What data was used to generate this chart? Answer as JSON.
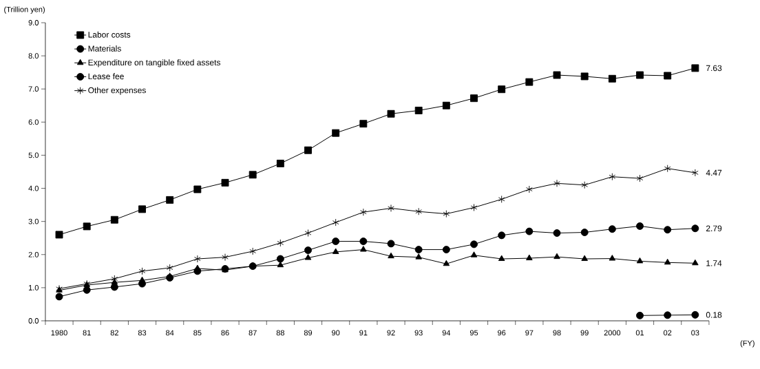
{
  "chart_data": {
    "type": "line",
    "ylabel": "(Trillion yen)",
    "xlabel": "(FY)",
    "categories": [
      "1980",
      "81",
      "82",
      "83",
      "84",
      "85",
      "86",
      "87",
      "88",
      "89",
      "90",
      "91",
      "92",
      "93",
      "94",
      "95",
      "96",
      "97",
      "98",
      "99",
      "2000",
      "01",
      "02",
      "03"
    ],
    "ylim": [
      0,
      9
    ],
    "yticks": [
      {
        "value": 0,
        "label": "0.0"
      },
      {
        "value": 1,
        "label": "1.0"
      },
      {
        "value": 2,
        "label": "2.0"
      },
      {
        "value": 3,
        "label": "3.0"
      },
      {
        "value": 4,
        "label": "4.0"
      },
      {
        "value": 5,
        "label": "5.0"
      },
      {
        "value": 6,
        "label": "6.0"
      },
      {
        "value": 7,
        "label": "7.0"
      },
      {
        "value": 8,
        "label": "8.0"
      },
      {
        "value": 9,
        "label": "9.0"
      }
    ],
    "legend": "top left",
    "grid": false,
    "line_style": "solid",
    "series": [
      {
        "name": "Labor costs",
        "color": "#000000",
        "marker": "square",
        "values": [
          2.6,
          2.85,
          3.05,
          3.37,
          3.65,
          3.97,
          4.17,
          4.41,
          4.75,
          5.15,
          5.67,
          5.95,
          6.25,
          6.35,
          6.5,
          6.72,
          6.99,
          7.21,
          7.42,
          7.38,
          7.31,
          7.42,
          7.4,
          7.63
        ],
        "value_labels": [
          null,
          null,
          null,
          null,
          null,
          null,
          null,
          null,
          null,
          null,
          null,
          null,
          null,
          null,
          null,
          null,
          null,
          null,
          null,
          null,
          null,
          null,
          null,
          "7.63"
        ]
      },
      {
        "name": "Materials",
        "color": "#000000",
        "marker": "circle",
        "values": [
          0.73,
          0.93,
          1.02,
          1.12,
          1.3,
          1.5,
          1.57,
          1.65,
          1.87,
          2.13,
          2.4,
          2.4,
          2.33,
          2.15,
          2.15,
          2.31,
          2.58,
          2.7,
          2.65,
          2.67,
          2.77,
          2.86,
          2.75,
          2.79
        ],
        "value_labels": [
          null,
          null,
          null,
          null,
          null,
          null,
          null,
          null,
          null,
          null,
          null,
          null,
          null,
          null,
          null,
          null,
          null,
          null,
          null,
          null,
          null,
          null,
          null,
          "2.79"
        ]
      },
      {
        "name": "Expenditure on tangible fixed assets",
        "color": "#000000",
        "marker": "triangle",
        "values": [
          0.92,
          1.08,
          1.16,
          1.22,
          1.34,
          1.58,
          1.53,
          1.65,
          1.68,
          1.9,
          2.08,
          2.15,
          1.95,
          1.92,
          1.72,
          1.98,
          1.87,
          1.89,
          1.93,
          1.87,
          1.88,
          1.8,
          1.76,
          1.74
        ],
        "value_labels": [
          null,
          null,
          null,
          null,
          null,
          null,
          null,
          null,
          null,
          null,
          null,
          null,
          null,
          null,
          null,
          null,
          null,
          null,
          null,
          null,
          null,
          null,
          null,
          "1.74"
        ]
      },
      {
        "name": "Lease fee",
        "color": "#000000",
        "marker": "circle",
        "values": [
          null,
          null,
          null,
          null,
          null,
          null,
          null,
          null,
          null,
          null,
          null,
          null,
          null,
          null,
          null,
          null,
          null,
          null,
          null,
          null,
          null,
          0.16,
          0.17,
          0.18
        ],
        "value_labels": [
          null,
          null,
          null,
          null,
          null,
          null,
          null,
          null,
          null,
          null,
          null,
          null,
          null,
          null,
          null,
          null,
          null,
          null,
          null,
          null,
          null,
          null,
          null,
          "0.18"
        ]
      },
      {
        "name": "Other expenses",
        "color": "#000000",
        "marker": "cross",
        "values": [
          0.97,
          1.12,
          1.27,
          1.5,
          1.6,
          1.87,
          1.92,
          2.1,
          2.35,
          2.65,
          2.97,
          3.28,
          3.4,
          3.3,
          3.23,
          3.42,
          3.67,
          3.97,
          4.15,
          4.1,
          4.35,
          4.3,
          4.6,
          4.47
        ],
        "value_labels": [
          null,
          null,
          null,
          null,
          null,
          null,
          null,
          null,
          null,
          null,
          null,
          null,
          null,
          null,
          null,
          null,
          null,
          null,
          null,
          null,
          null,
          null,
          null,
          "4.47"
        ]
      }
    ]
  }
}
